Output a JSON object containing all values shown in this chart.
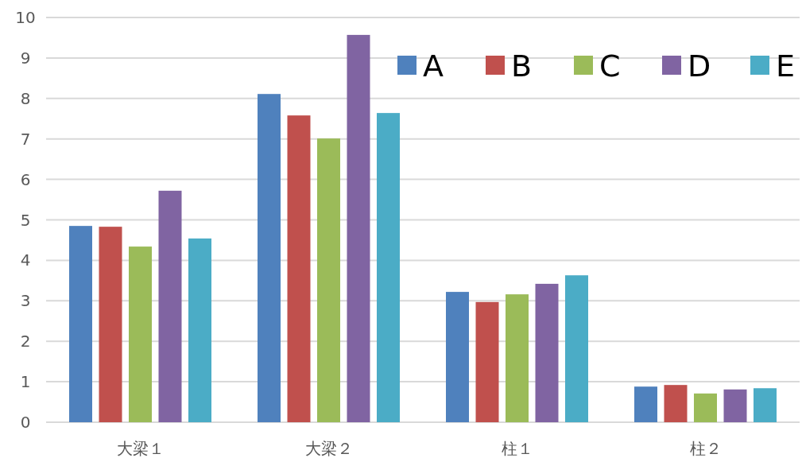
{
  "chart_data": {
    "type": "bar",
    "categories": [
      "大梁１",
      "大梁２",
      "柱１",
      "柱２"
    ],
    "series": [
      {
        "name": "A",
        "color": "#4f81bd",
        "values": [
          4.85,
          8.11,
          3.22,
          0.88
        ]
      },
      {
        "name": "B",
        "color": "#c0504d",
        "values": [
          4.83,
          7.58,
          2.97,
          0.92
        ]
      },
      {
        "name": "C",
        "color": "#9bbb59",
        "values": [
          4.34,
          7.01,
          3.16,
          0.71
        ]
      },
      {
        "name": "D",
        "color": "#8064a2",
        "values": [
          5.72,
          9.57,
          3.42,
          0.81
        ]
      },
      {
        "name": "E",
        "color": "#4bacc6",
        "values": [
          4.54,
          7.64,
          3.63,
          0.84
        ]
      }
    ],
    "ylim": [
      0,
      10
    ],
    "yticks": [
      0,
      1,
      2,
      3,
      4,
      5,
      6,
      7,
      8,
      9,
      10
    ],
    "grid": "y",
    "legend": "top right"
  }
}
